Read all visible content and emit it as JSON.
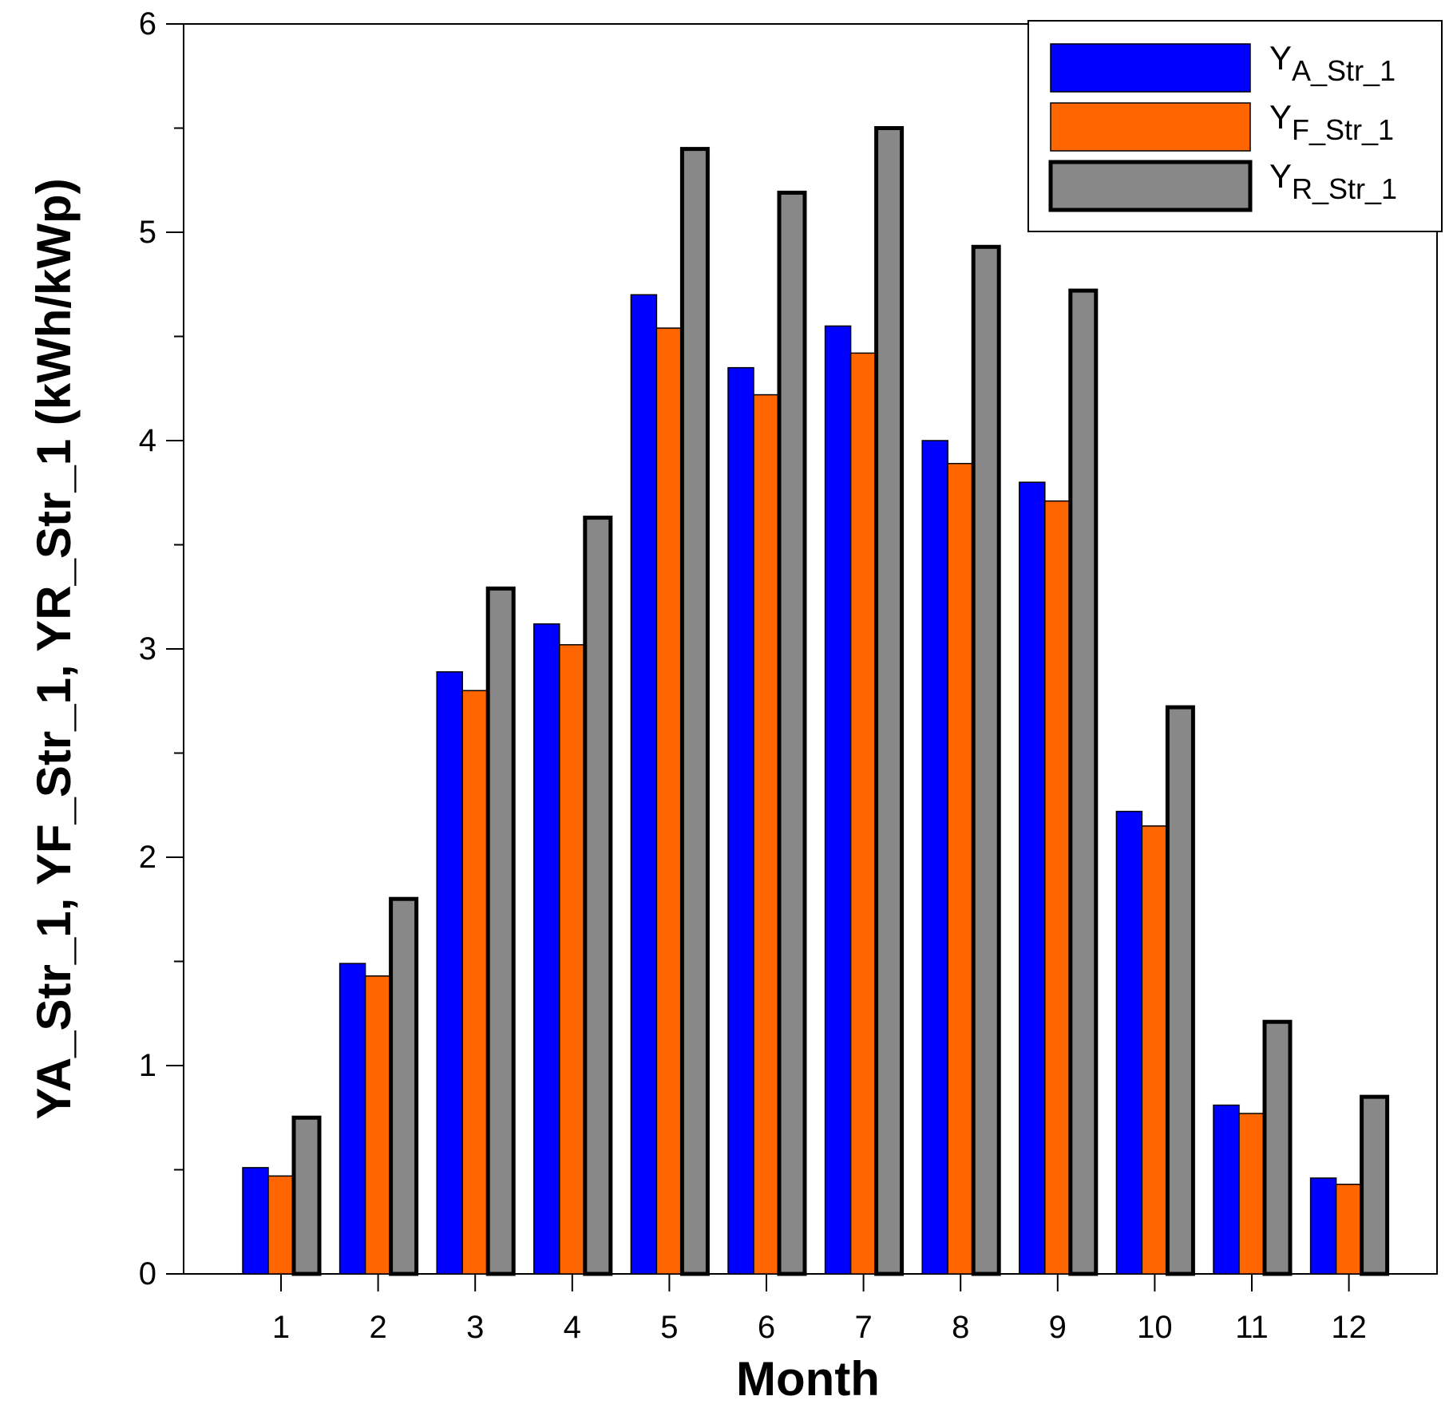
{
  "chart_data": {
    "type": "bar",
    "title": "",
    "xlabel": "Month",
    "ylabel": "YA_Str_1, YF_Str_1, YR_Str_1 (kWh/kWp)",
    "ylim": [
      0,
      6
    ],
    "yticks": [
      0,
      1,
      2,
      3,
      4,
      5,
      6
    ],
    "grid": false,
    "legend_position": "top-right",
    "categories": [
      "1",
      "2",
      "3",
      "4",
      "5",
      "6",
      "7",
      "8",
      "9",
      "10",
      "11",
      "12"
    ],
    "series": [
      {
        "name": "YA_Str_1",
        "legend_main": "Y",
        "legend_sub": "A_Str_1",
        "color": "#0000ff",
        "outline": "thin",
        "values": [
          0.51,
          1.49,
          2.89,
          3.12,
          4.7,
          4.35,
          4.55,
          4.0,
          3.8,
          2.22,
          0.81,
          0.46
        ]
      },
      {
        "name": "YF_Str_1",
        "legend_main": "Y",
        "legend_sub": "F_Str_1",
        "color": "#ff6600",
        "outline": "thin",
        "values": [
          0.47,
          1.43,
          2.8,
          3.02,
          4.54,
          4.22,
          4.42,
          3.89,
          3.71,
          2.15,
          0.77,
          0.43
        ]
      },
      {
        "name": "YR_Str_1",
        "legend_main": "Y",
        "legend_sub": "R_Str_1",
        "color": "#888888",
        "outline": "thick",
        "values": [
          0.75,
          1.8,
          3.29,
          3.63,
          5.4,
          5.19,
          5.5,
          4.93,
          4.72,
          2.72,
          1.21,
          0.85
        ]
      }
    ]
  }
}
